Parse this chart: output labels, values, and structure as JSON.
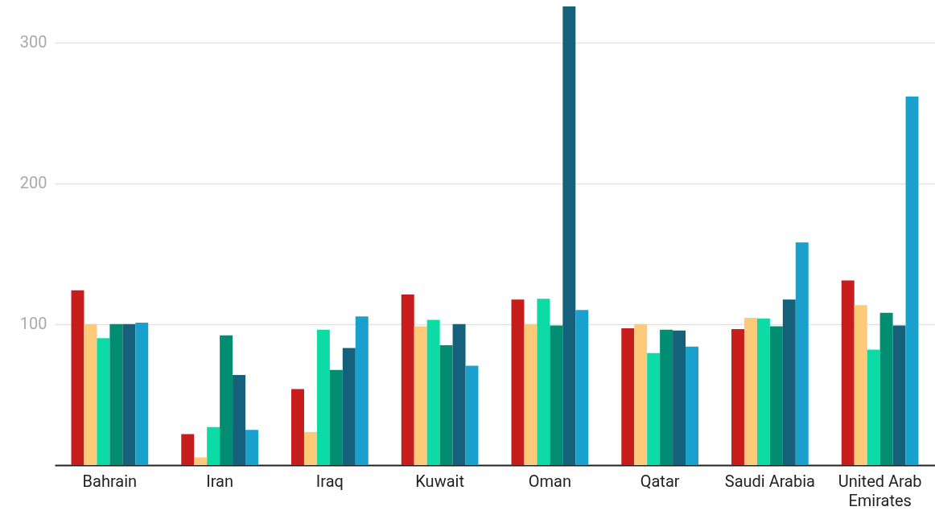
{
  "chart_data": {
    "type": "bar",
    "categories": [
      "Bahrain",
      "Iran",
      "Iraq",
      "Kuwait",
      "Oman",
      "Qatar",
      "Saudi Arabia",
      "United Arab Emirates"
    ],
    "series": [
      {
        "color": "#c71e1d",
        "values": [
          124,
          22,
          54,
          121,
          117.5,
          97,
          96.5,
          131
        ]
      },
      {
        "color": "#fdca79",
        "values": [
          100,
          5.5,
          23.5,
          98.5,
          100,
          100,
          104.5,
          113.5
        ]
      },
      {
        "color": "#0cdba6",
        "values": [
          90,
          27,
          96,
          103,
          118,
          79.5,
          104,
          82
        ]
      },
      {
        "color": "#018d72",
        "values": [
          100,
          92,
          67.5,
          85,
          99,
          96,
          98.5,
          108
        ]
      },
      {
        "color": "#15607a",
        "values": [
          100,
          64,
          83,
          100,
          325.5,
          95.5,
          117.5,
          99
        ]
      },
      {
        "color": "#19a1cd",
        "values": [
          101,
          25,
          105.5,
          70.5,
          110,
          84,
          158,
          261.5
        ]
      }
    ],
    "ylim": [
      0,
      330
    ],
    "yticks": [
      100,
      200,
      300
    ],
    "grid": "y"
  }
}
